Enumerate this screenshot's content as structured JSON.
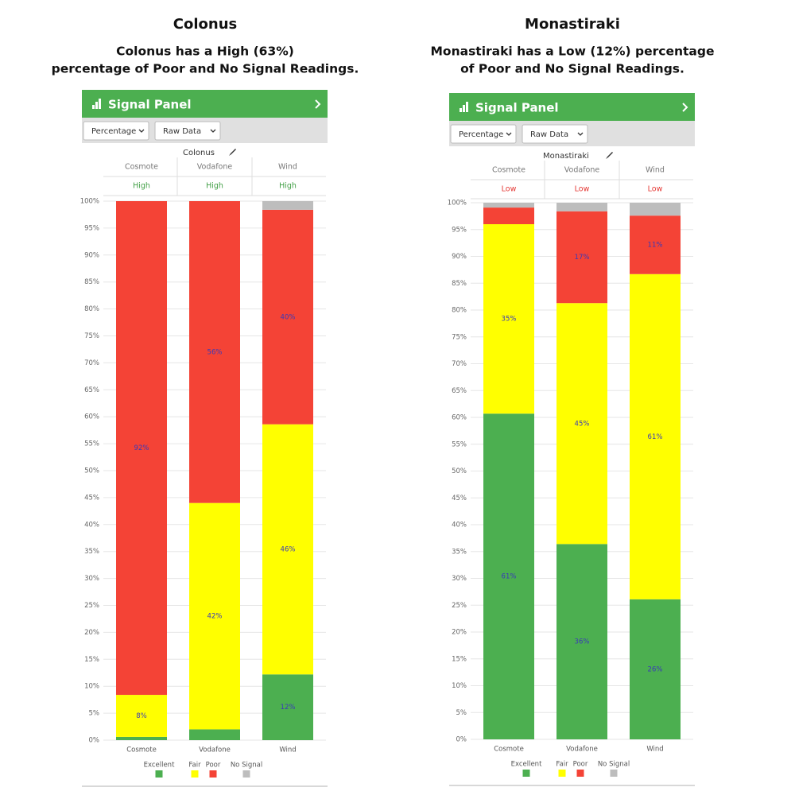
{
  "panels": [
    {
      "title": "Colonus",
      "subtitle": [
        "Colonus has a High (63%)",
        "percentage of Poor and No Signal Readings."
      ],
      "panel_title": "Signal Panel",
      "dropdowns": [
        "Percentage",
        "Raw Data"
      ],
      "location": "Colonus",
      "networks": [
        "Cosmote",
        "Vodafone",
        "Wind"
      ],
      "statuses": [
        "High",
        "High",
        "High"
      ],
      "status_color": "#43a047"
    },
    {
      "title": "Monastiraki",
      "subtitle": [
        "Monastiraki has a Low (12%) percentage",
        "of Poor and No Signal Readings."
      ],
      "panel_title": "Signal Panel",
      "dropdowns": [
        "Percentage",
        "Raw Data"
      ],
      "location": "Monastiraki",
      "networks": [
        "Cosmote",
        "Vodafone",
        "Wind"
      ],
      "statuses": [
        "Low",
        "Low",
        "Low"
      ],
      "status_color": "#e53935"
    }
  ],
  "chart_data": [
    {
      "type": "stacked_bar",
      "categories": [
        "Cosmote",
        "Vodafone",
        "Wind"
      ],
      "series": [
        {
          "name": "Excellent",
          "color": "#4caf50",
          "values": [
            0.6,
            2,
            12.2
          ],
          "value_labels": [
            null,
            null,
            "12%"
          ]
        },
        {
          "name": "Fair",
          "color": "#ffff00",
          "values": [
            7.8,
            42,
            46.4
          ],
          "value_labels": [
            "8%",
            "42%",
            "46%"
          ]
        },
        {
          "name": "Poor",
          "color": "#f44336",
          "values": [
            91.6,
            56,
            39.8
          ],
          "value_labels": [
            "92%",
            "56%",
            "40%"
          ]
        },
        {
          "name": "No Signal",
          "color": "#bdbdbd",
          "values": [
            0,
            0,
            1.6
          ]
        }
      ],
      "ylim": [
        0,
        100
      ],
      "yticks": [
        {
          "value": 0,
          "label": "0%"
        },
        {
          "value": 5,
          "label": "5%"
        },
        {
          "value": 10,
          "label": "10%"
        },
        {
          "value": 15,
          "label": "15%"
        },
        {
          "value": 20,
          "label": "20%"
        },
        {
          "value": 25,
          "label": "25%"
        },
        {
          "value": 30,
          "label": "30%"
        },
        {
          "value": 35,
          "label": "35%"
        },
        {
          "value": 40,
          "label": "40%"
        },
        {
          "value": 45,
          "label": "45%"
        },
        {
          "value": 50,
          "label": "50%"
        },
        {
          "value": 55,
          "label": "55%"
        },
        {
          "value": 60,
          "label": "60%"
        },
        {
          "value": 65,
          "label": "65%"
        },
        {
          "value": 70,
          "label": "70%"
        },
        {
          "value": 75,
          "label": "75%"
        },
        {
          "value": 80,
          "label": "80%"
        },
        {
          "value": 85,
          "label": "85%"
        },
        {
          "value": 90,
          "label": "90%"
        },
        {
          "value": 95,
          "label": "95%"
        },
        {
          "value": 100,
          "label": "100%"
        }
      ],
      "grid": true
    },
    {
      "type": "stacked_bar",
      "categories": [
        "Cosmote",
        "Vodafone",
        "Wind"
      ],
      "series": [
        {
          "name": "Excellent",
          "color": "#4caf50",
          "values": [
            60.7,
            36.4,
            26.1
          ],
          "value_labels": [
            "61%",
            "36%",
            "26%"
          ]
        },
        {
          "name": "Fair",
          "color": "#ffff00",
          "values": [
            35.3,
            44.9,
            60.6
          ],
          "value_labels": [
            "35%",
            "45%",
            "61%"
          ]
        },
        {
          "name": "Poor",
          "color": "#f44336",
          "values": [
            3.1,
            17.1,
            10.9
          ],
          "value_labels": [
            null,
            "17%",
            "11%"
          ]
        },
        {
          "name": "No Signal",
          "color": "#bdbdbd",
          "values": [
            0.9,
            1.6,
            2.4
          ]
        }
      ],
      "ylim": [
        0,
        100
      ],
      "yticks": [
        {
          "value": 0,
          "label": "0%"
        },
        {
          "value": 5,
          "label": "5%"
        },
        {
          "value": 10,
          "label": "10%"
        },
        {
          "value": 15,
          "label": "15%"
        },
        {
          "value": 20,
          "label": "20%"
        },
        {
          "value": 25,
          "label": "25%"
        },
        {
          "value": 30,
          "label": "30%"
        },
        {
          "value": 35,
          "label": "35%"
        },
        {
          "value": 40,
          "label": "40%"
        },
        {
          "value": 45,
          "label": "45%"
        },
        {
          "value": 50,
          "label": "50%"
        },
        {
          "value": 55,
          "label": "55%"
        },
        {
          "value": 60,
          "label": "60%"
        },
        {
          "value": 65,
          "label": "65%"
        },
        {
          "value": 70,
          "label": "70%"
        },
        {
          "value": 75,
          "label": "75%"
        },
        {
          "value": 80,
          "label": "80%"
        },
        {
          "value": 85,
          "label": "85%"
        },
        {
          "value": 90,
          "label": "90%"
        },
        {
          "value": 95,
          "label": "95%"
        },
        {
          "value": 100,
          "label": "100%"
        }
      ],
      "grid": true
    }
  ]
}
